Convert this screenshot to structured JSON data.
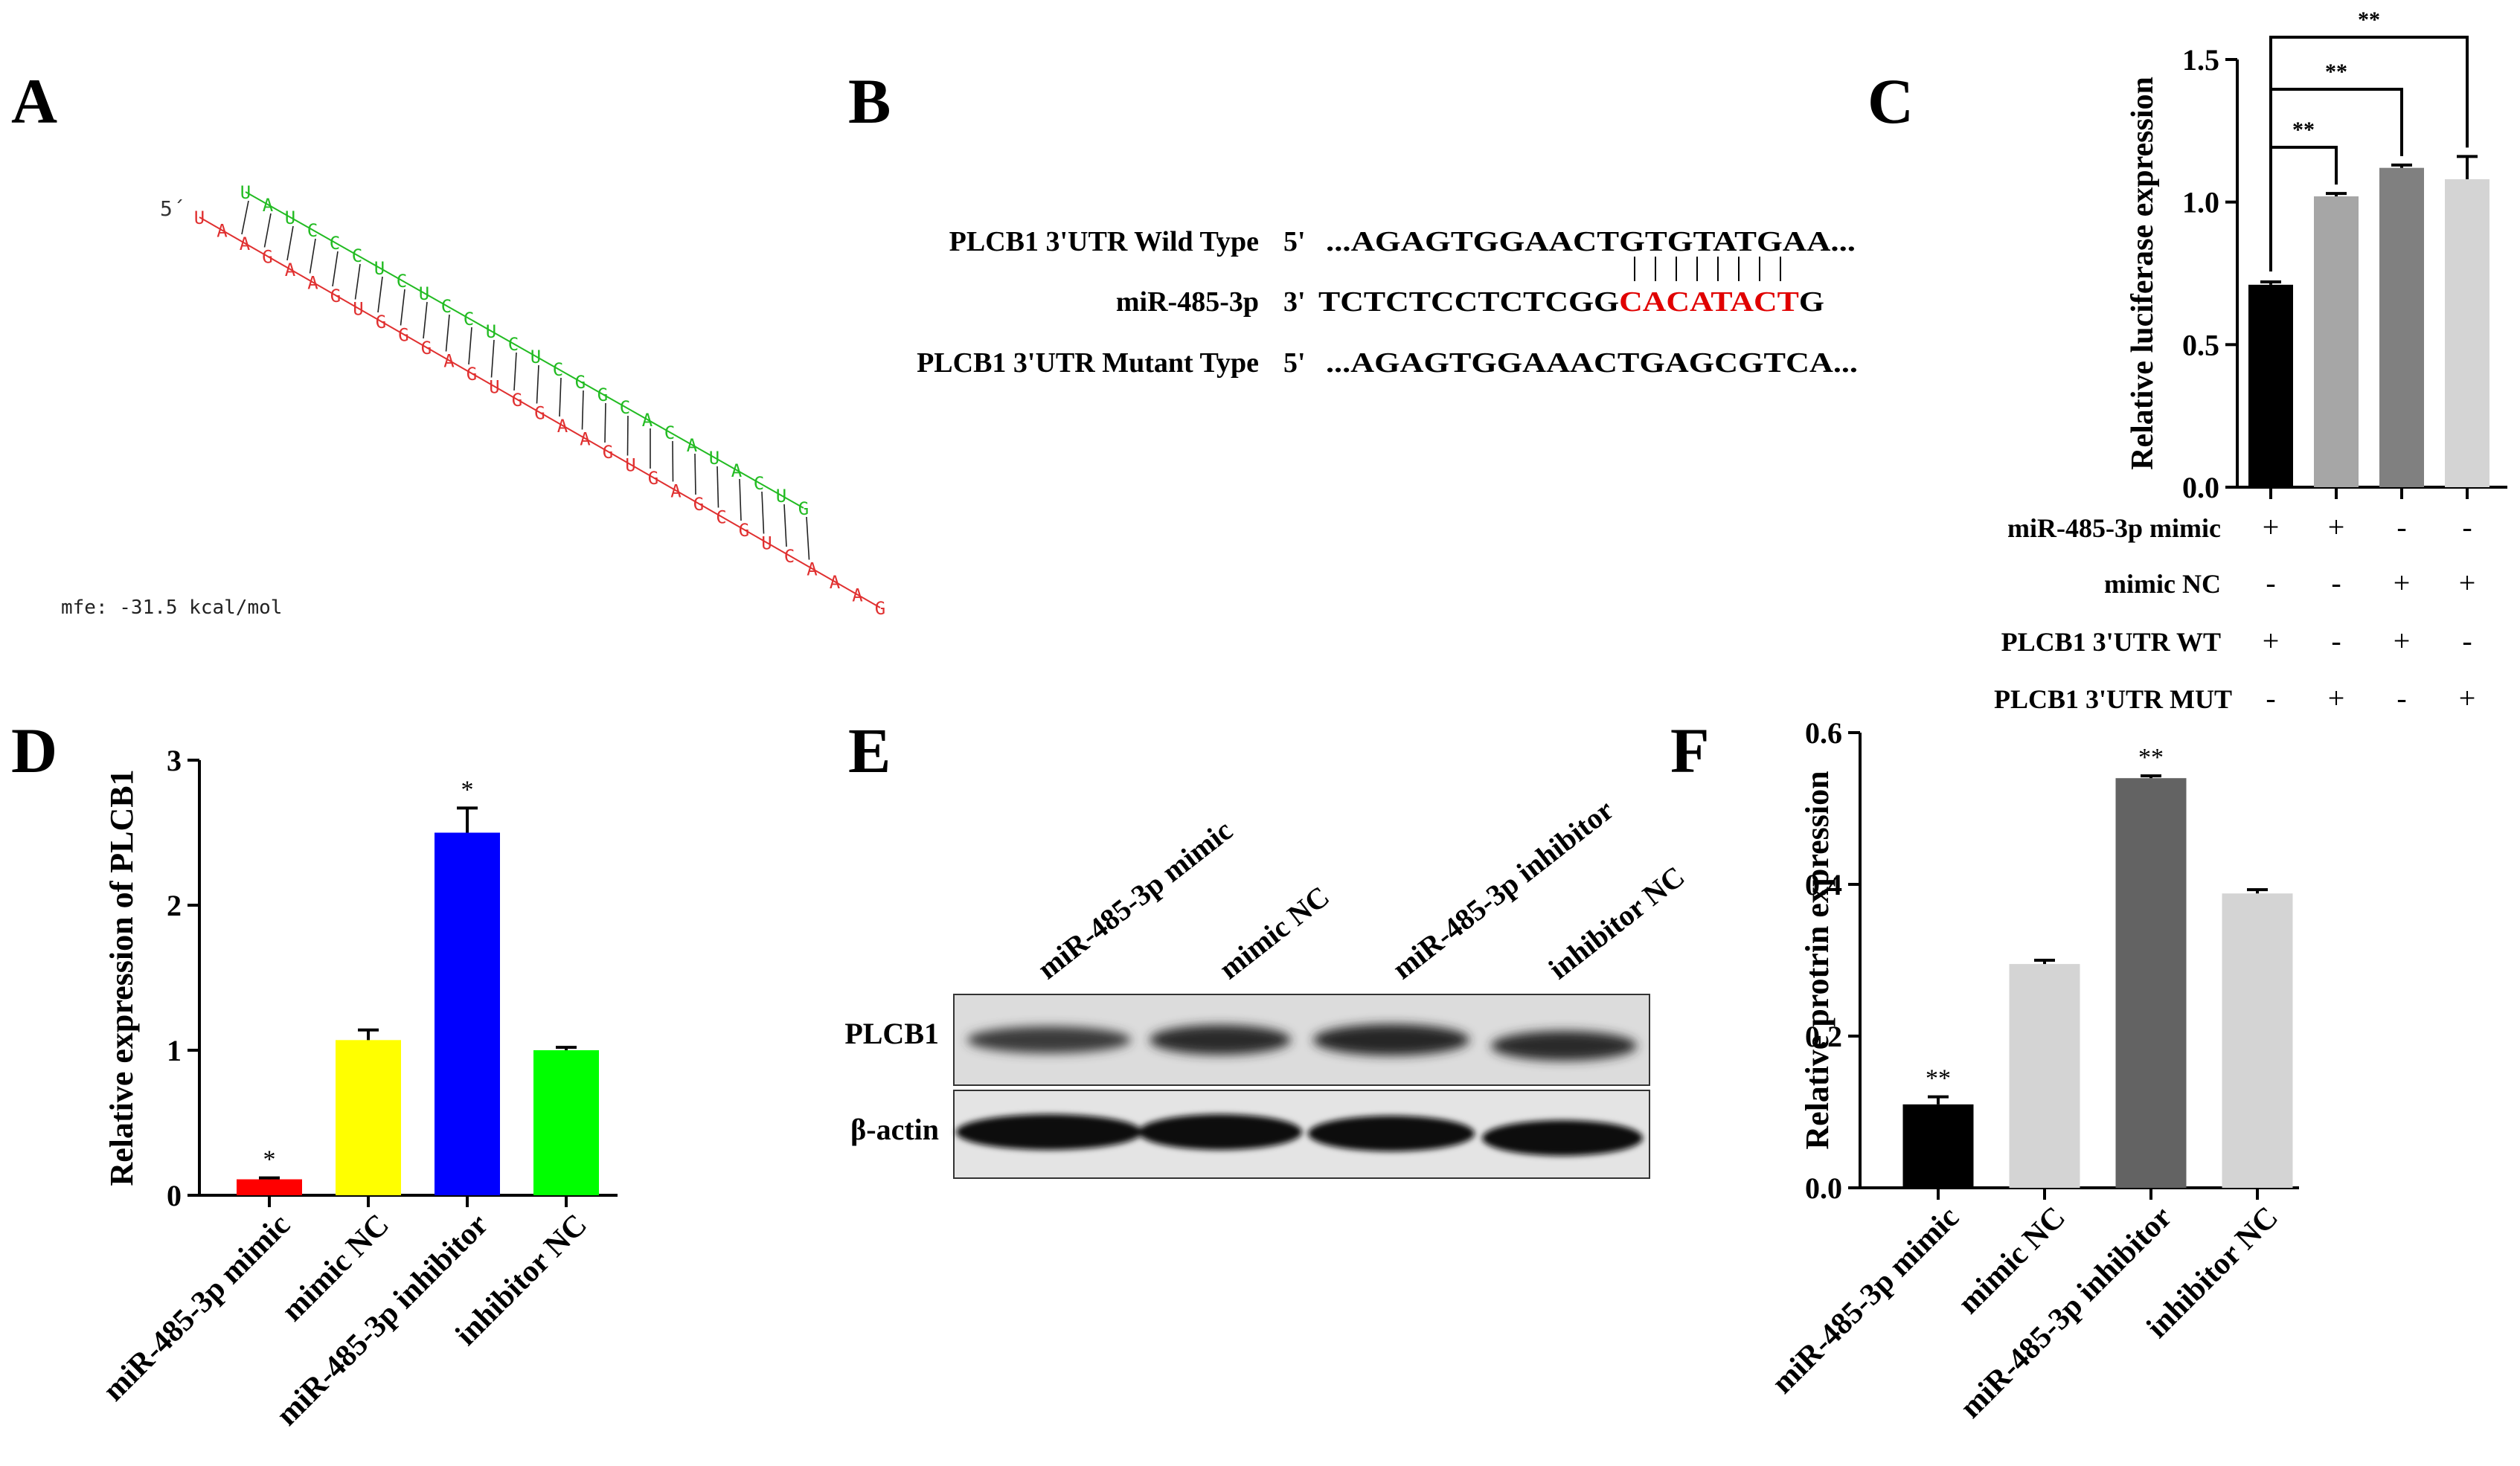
{
  "panel_letters": {
    "a": "A",
    "b": "B",
    "c": "C",
    "d": "D",
    "e": "E",
    "f": "F"
  },
  "panel_a": {
    "five_prime": "5´",
    "mfe": "mfe: -31.5 kcal/mol",
    "mirna_strand": "UAUCCCUCUCCUCUCGGCACAUACUG",
    "target_strand": "UAAGAAGUGGGAGUGGAAGUGAGCGUCAAAG",
    "colors": {
      "mirna": "#22bb22",
      "target": "#e03030"
    }
  },
  "panel_b": {
    "rows": [
      {
        "label": "PLCB1 3'UTR Wild Type",
        "prefix": "5'",
        "seq": "...AGAGTGGAACTGTGTATGAA...",
        "highlight": ""
      },
      {
        "label": "miR-485-3p",
        "prefix": "3'",
        "seq": "TCTCTCCTCTCGG",
        "highlight": "CACATACT",
        "suffix": "G"
      },
      {
        "label": "PLCB1 3'UTR Mutant Type",
        "prefix": "5'",
        "seq": "...AGAGTGGAAACTGAGCGTCA...",
        "highlight": ""
      }
    ],
    "highlight_color": "#e00000"
  },
  "chart_data": [
    {
      "panel": "C",
      "type": "bar",
      "ylabel": "Relative luciferase expression",
      "ylim": [
        0,
        1.5
      ],
      "yticks": [
        "0.0",
        "0.5",
        "1.0",
        "1.5"
      ],
      "values": [
        0.71,
        1.02,
        1.12,
        1.08
      ],
      "errors": [
        0.01,
        0.01,
        0.01,
        0.08
      ],
      "colors": [
        "#000000",
        "#a6a6a6",
        "#808080",
        "#d4d4d4"
      ],
      "significance": [
        "**",
        "**",
        "**"
      ],
      "condition_table": [
        {
          "label": "miR-485-3p mimic",
          "signs": [
            "+",
            "+",
            "-",
            "-"
          ]
        },
        {
          "label": "mimic NC",
          "signs": [
            "-",
            "-",
            "+",
            "+"
          ]
        },
        {
          "label": "PLCB1 3'UTR WT",
          "signs": [
            "+",
            "-",
            "+",
            "-"
          ]
        },
        {
          "label": "PLCB1 3'UTR MUT",
          "signs": [
            "-",
            "+",
            "-",
            "+"
          ]
        }
      ]
    },
    {
      "panel": "D",
      "type": "bar",
      "ylabel": "Relative expression of PLCB1",
      "ylim": [
        0,
        3
      ],
      "yticks": [
        "0",
        "1",
        "2",
        "3"
      ],
      "categories": [
        "miR-485-3p mimic",
        "mimic NC",
        "miR-485-3p inhibitor",
        "inhibitor NC"
      ],
      "values": [
        0.11,
        1.07,
        2.5,
        1.0
      ],
      "errors": [
        0.01,
        0.07,
        0.17,
        0.02
      ],
      "colors": [
        "#ff0000",
        "#ffff00",
        "#0000ff",
        "#00ff00"
      ],
      "stars": [
        "*",
        "",
        "*",
        ""
      ]
    },
    {
      "panel": "F",
      "type": "bar",
      "ylabel": "Relative protrin expression",
      "ylim": [
        0,
        0.6
      ],
      "yticks": [
        "0.0",
        "0.2",
        "0.4",
        "0.6"
      ],
      "categories": [
        "miR-485-3p mimic",
        "mimic NC",
        "miR-485-3p inhibitor",
        "inhibitor NC"
      ],
      "values": [
        0.11,
        0.295,
        0.54,
        0.388
      ],
      "errors": [
        0.01,
        0.005,
        0.003,
        0.005
      ],
      "colors": [
        "#000000",
        "#d4d4d4",
        "#636363",
        "#d4d4d4"
      ],
      "stars": [
        "**",
        "",
        "**",
        ""
      ]
    }
  ],
  "panel_e": {
    "lanes": [
      "miR-485-3p mimic",
      "mimic NC",
      "miR-485-3p inhibitor",
      "inhibitor NC"
    ],
    "rows": [
      "PLCB1",
      "β-actin"
    ]
  }
}
